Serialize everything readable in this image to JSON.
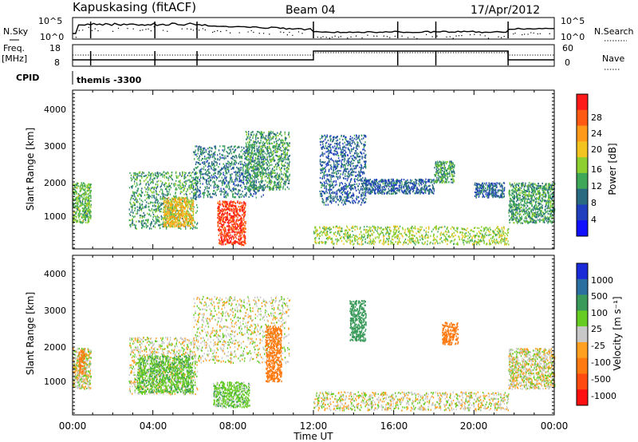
{
  "header": {
    "station": "Kapuskasing (fitACF)",
    "beam": "Beam 04",
    "date": "17/Apr/2012"
  },
  "noise_panel": {
    "left_label": "N.Sky",
    "left_ticks": [
      "10^5",
      "10^0"
    ],
    "right_label": "N.Search",
    "right_ticks": [
      "10^5",
      "10^0"
    ]
  },
  "freq_panel": {
    "left_label_1": "Freq.",
    "left_label_2": "[MHz]",
    "left_ticks": [
      "18",
      "8"
    ],
    "right_label": "Nave",
    "right_ticks": [
      "60",
      "0"
    ]
  },
  "cpid": {
    "label": "CPID",
    "text": "themis -3300"
  },
  "axes": {
    "ylabel": "Slant Range [km]",
    "yticks": [
      "4000",
      "3000",
      "2000",
      "1000"
    ],
    "xticks": [
      "00:00",
      "04:00",
      "08:00",
      "12:00",
      "16:00",
      "20:00",
      "00:00"
    ],
    "xlabel": "Time UT"
  },
  "colorbars": {
    "power": {
      "label": "Power [dB]",
      "ticks": [
        "28",
        "24",
        "20",
        "16",
        "12",
        "8",
        "4"
      ],
      "colors": [
        "#ff1a1a",
        "#ff5a14",
        "#ff9a1a",
        "#f3c420",
        "#8ccf2e",
        "#3fa858",
        "#2a6a80",
        "#1f3fbf",
        "#1010ff"
      ]
    },
    "velocity": {
      "label": "Velocity [m s⁻¹]",
      "ticks": [
        "1000",
        "500",
        "100",
        "25",
        "-25",
        "-100",
        "-500",
        "-1000"
      ],
      "colors": [
        "#1a2ad8",
        "#2b6ea0",
        "#3a9a5a",
        "#66cc22",
        "#c8c8c8",
        "#ffa020",
        "#ff7a10",
        "#ff4a10",
        "#ff1010"
      ]
    }
  },
  "chart_data": [
    {
      "type": "heatmap",
      "title": "Power",
      "xlabel": "Time UT",
      "ylabel": "Slant Range [km]",
      "xlim": [
        0,
        24
      ],
      "ylim": [
        180,
        4500
      ],
      "colorbar_label": "Power [dB]",
      "regions": [
        {
          "t0": 0.0,
          "t1": 0.9,
          "r0": 900,
          "r1": 2000,
          "value": 12
        },
        {
          "t0": 2.8,
          "t1": 6.2,
          "r0": 750,
          "r1": 2300,
          "value": 10
        },
        {
          "t0": 4.5,
          "t1": 6.0,
          "r0": 800,
          "r1": 1600,
          "value": 18
        },
        {
          "t0": 6.0,
          "t1": 9.5,
          "r0": 1600,
          "r1": 3000,
          "value": 8
        },
        {
          "t0": 7.2,
          "t1": 8.6,
          "r0": 300,
          "r1": 1500,
          "value": 26
        },
        {
          "t0": 8.6,
          "t1": 10.8,
          "r0": 1800,
          "r1": 3400,
          "value": 10
        },
        {
          "t0": 12.0,
          "t1": 21.7,
          "r0": 320,
          "r1": 820,
          "value": 14
        },
        {
          "t0": 12.3,
          "t1": 14.6,
          "r0": 1400,
          "r1": 3300,
          "value": 6
        },
        {
          "t0": 14.5,
          "t1": 18.0,
          "r0": 1700,
          "r1": 2100,
          "value": 6
        },
        {
          "t0": 18.0,
          "t1": 19.0,
          "r0": 2000,
          "r1": 2600,
          "value": 10
        },
        {
          "t0": 20.0,
          "t1": 21.5,
          "r0": 1600,
          "r1": 2000,
          "value": 6
        },
        {
          "t0": 21.7,
          "t1": 24.0,
          "r0": 900,
          "r1": 2000,
          "value": 10
        }
      ]
    },
    {
      "type": "heatmap",
      "title": "Velocity",
      "xlabel": "Time UT",
      "ylabel": "Slant Range [km]",
      "xlim": [
        0,
        24
      ],
      "ylim": [
        180,
        4500
      ],
      "colorbar_label": "Velocity [m s⁻¹]",
      "regions": [
        {
          "t0": 0.0,
          "t1": 0.9,
          "r0": 900,
          "r1": 2000,
          "value": 0
        },
        {
          "t0": 0.3,
          "t1": 0.6,
          "r0": 1300,
          "r1": 2000,
          "value": -300
        },
        {
          "t0": 2.8,
          "t1": 6.2,
          "r0": 750,
          "r1": 2300,
          "value": 0
        },
        {
          "t0": 3.2,
          "t1": 6.0,
          "r0": 800,
          "r1": 1800,
          "value": 80
        },
        {
          "t0": 6.0,
          "t1": 10.8,
          "r0": 1600,
          "r1": 3400,
          "value": 0
        },
        {
          "t0": 7.0,
          "t1": 8.8,
          "r0": 400,
          "r1": 1100,
          "value": 60
        },
        {
          "t0": 9.6,
          "t1": 10.4,
          "r0": 1100,
          "r1": 2600,
          "value": -300
        },
        {
          "t0": 12.0,
          "t1": 21.7,
          "r0": 320,
          "r1": 820,
          "value": 0
        },
        {
          "t0": 13.8,
          "t1": 14.6,
          "r0": 2200,
          "r1": 3300,
          "value": 400
        },
        {
          "t0": 18.4,
          "t1": 19.2,
          "r0": 2100,
          "r1": 2700,
          "value": -300
        },
        {
          "t0": 21.7,
          "t1": 24.0,
          "r0": 900,
          "r1": 2000,
          "value": 0
        }
      ]
    }
  ]
}
